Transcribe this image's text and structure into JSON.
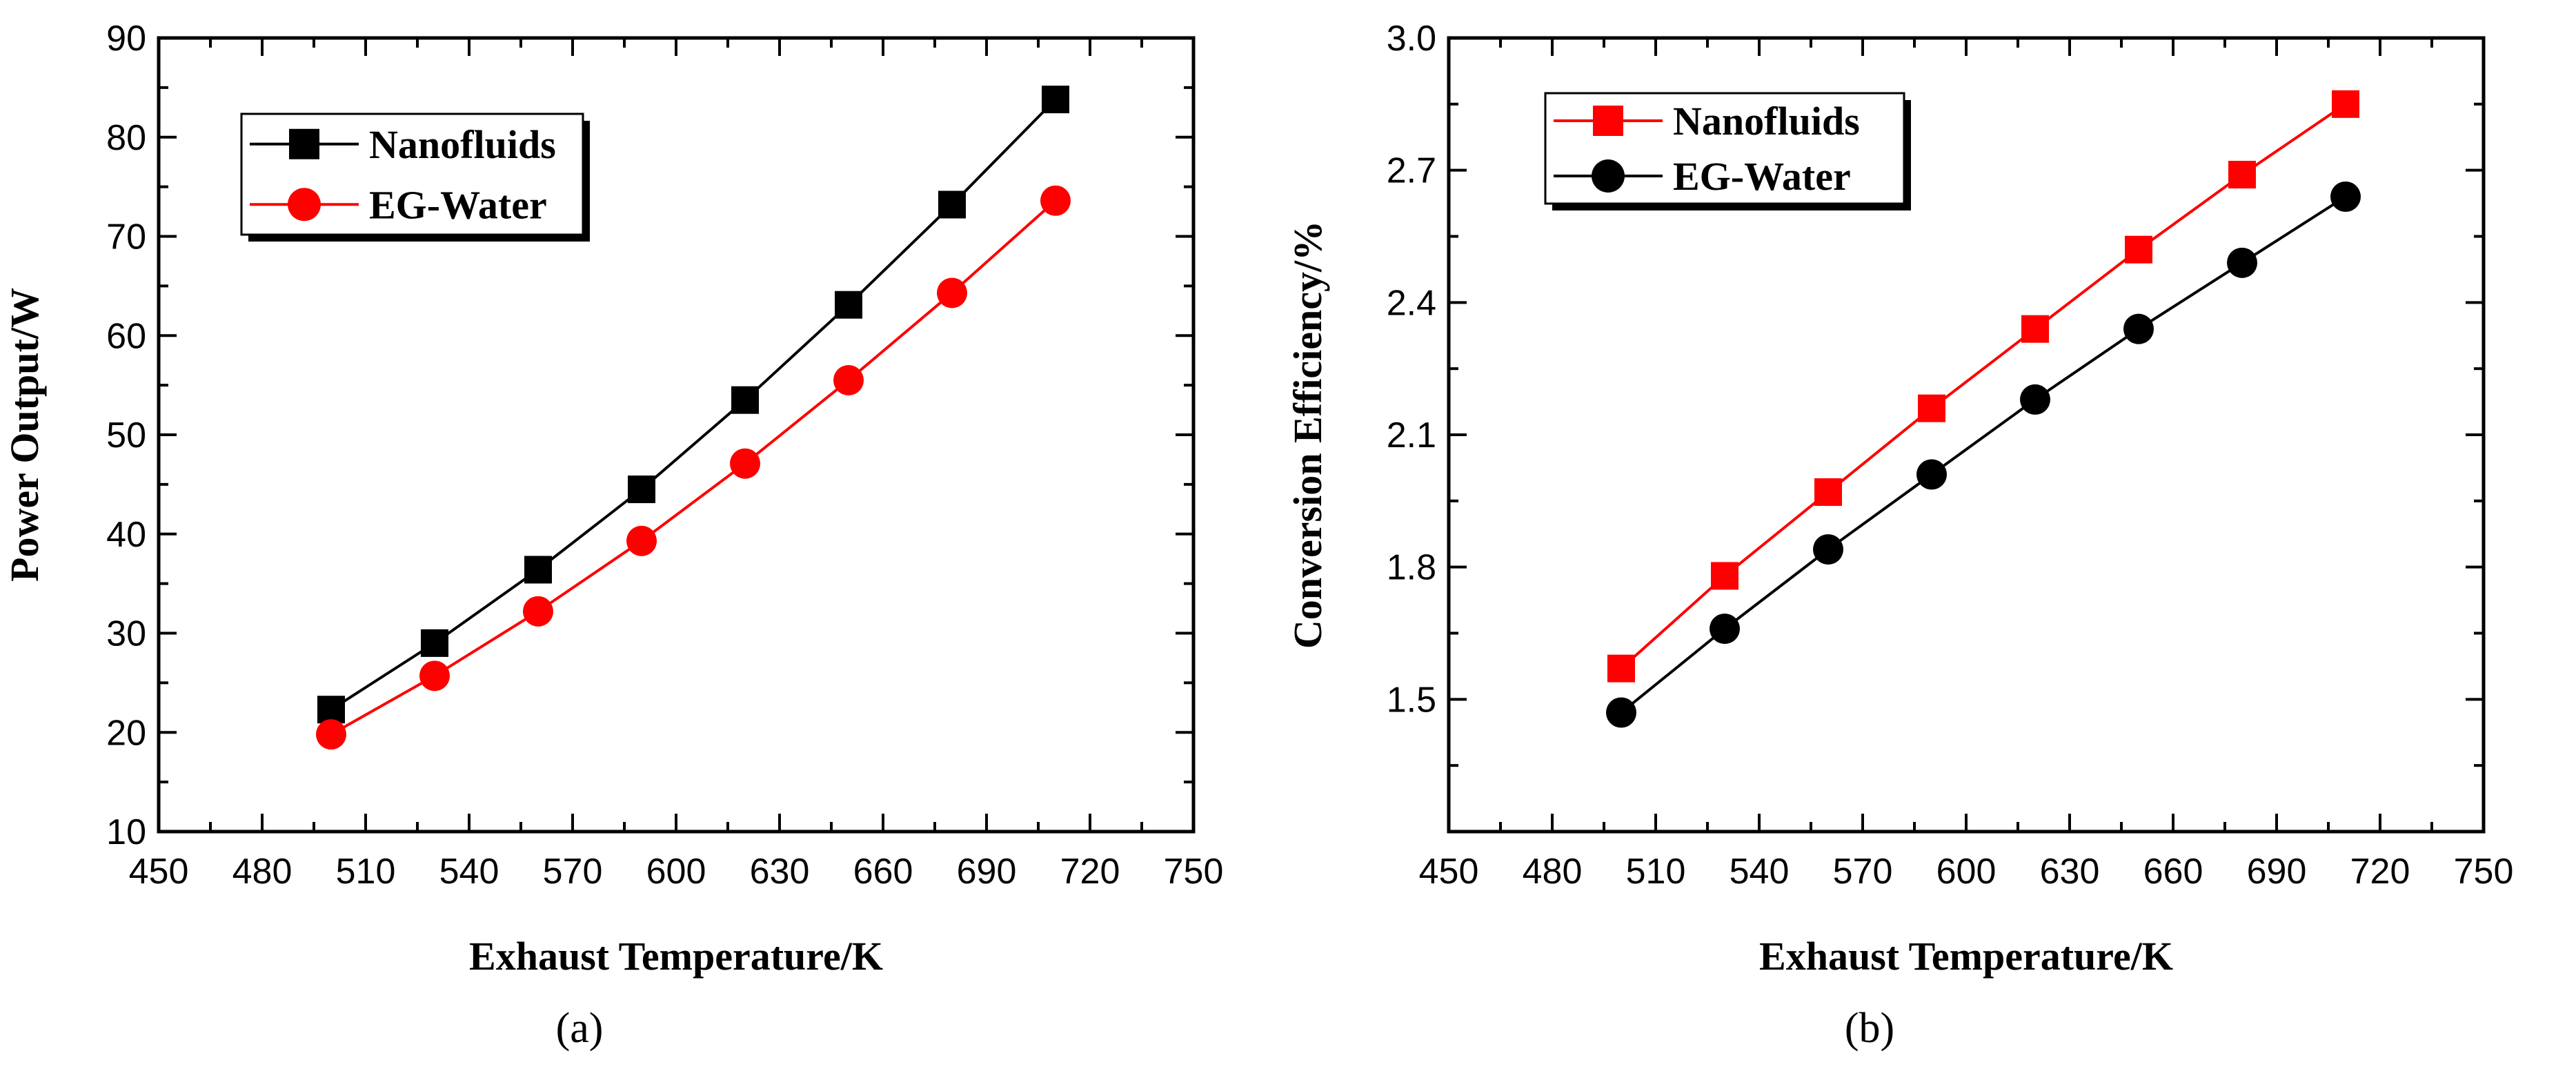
{
  "chart_data": [
    {
      "type": "line",
      "panel_label": "(a)",
      "xlabel": "Exhaust Temperature/K",
      "ylabel": "Power Output/W",
      "xlim": [
        450,
        750
      ],
      "ylim": [
        10,
        90
      ],
      "x_ticks": [
        450,
        480,
        510,
        540,
        570,
        600,
        630,
        660,
        690,
        720,
        750
      ],
      "y_ticks": [
        10,
        20,
        30,
        40,
        50,
        60,
        70,
        80,
        90
      ],
      "x_tick_labels": [
        "450",
        "480",
        "510",
        "540",
        "570",
        "600",
        "630",
        "660",
        "690",
        "720",
        "750"
      ],
      "y_tick_labels": [
        "10",
        "20",
        "30",
        "40",
        "50",
        "60",
        "70",
        "80",
        "90"
      ],
      "legend_position": "top-left",
      "grid": false,
      "x": [
        500,
        530,
        560,
        590,
        620,
        650,
        680,
        710
      ],
      "series": [
        {
          "name": "Nanofluids",
          "marker": "square",
          "color": "#000000",
          "values": [
            22.3,
            29.0,
            36.4,
            44.5,
            53.5,
            63.1,
            73.2,
            83.8
          ]
        },
        {
          "name": "EG-Water",
          "marker": "circle",
          "color": "#ff0000",
          "values": [
            19.8,
            25.7,
            32.2,
            39.3,
            47.1,
            55.5,
            64.3,
            73.6
          ]
        }
      ]
    },
    {
      "type": "line",
      "panel_label": "(b)",
      "xlabel": "Exhaust Temperature/K",
      "ylabel": "Conversion Efficiency/%",
      "xlim": [
        450,
        750
      ],
      "ylim": [
        1.2,
        3.0
      ],
      "x_ticks": [
        450,
        480,
        510,
        540,
        570,
        600,
        630,
        660,
        690,
        720,
        750
      ],
      "y_ticks": [
        1.5,
        1.8,
        2.1,
        2.4,
        2.7,
        3.0
      ],
      "x_tick_labels": [
        "450",
        "480",
        "510",
        "540",
        "570",
        "600",
        "630",
        "660",
        "690",
        "720",
        "750"
      ],
      "y_tick_labels": [
        "1.5",
        "1.8",
        "2.1",
        "2.4",
        "2.7",
        "3.0"
      ],
      "legend_position": "top-left",
      "grid": false,
      "x": [
        500,
        530,
        560,
        590,
        620,
        650,
        680,
        710
      ],
      "series": [
        {
          "name": "Nanofluids",
          "marker": "square",
          "color": "#ff0000",
          "values": [
            1.57,
            1.78,
            1.97,
            2.16,
            2.34,
            2.52,
            2.69,
            2.85
          ]
        },
        {
          "name": "EG-Water",
          "marker": "circle",
          "color": "#000000",
          "values": [
            1.47,
            1.66,
            1.84,
            2.01,
            2.18,
            2.34,
            2.49,
            2.64
          ]
        }
      ]
    }
  ]
}
